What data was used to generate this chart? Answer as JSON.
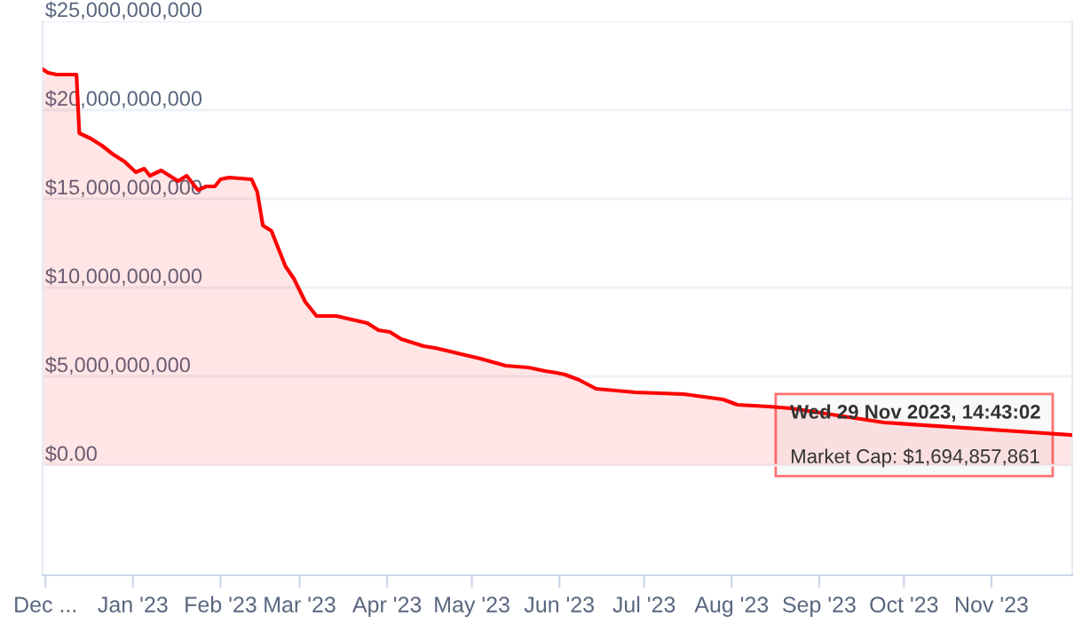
{
  "chart_data": {
    "type": "area",
    "x": [
      "2022-11-30",
      "2022-12-02",
      "2022-12-05",
      "2022-12-12",
      "2022-12-13",
      "2022-12-17",
      "2022-12-21",
      "2022-12-25",
      "2022-12-29",
      "2023-01-02",
      "2023-01-05",
      "2023-01-07",
      "2023-01-11",
      "2023-01-14",
      "2023-01-17",
      "2023-01-20",
      "2023-01-24",
      "2023-01-27",
      "2023-01-30",
      "2023-02-01",
      "2023-02-04",
      "2023-02-12",
      "2023-02-14",
      "2023-02-16",
      "2023-02-19",
      "2023-02-24",
      "2023-02-27",
      "2023-03-03",
      "2023-03-07",
      "2023-03-14",
      "2023-03-25",
      "2023-03-29",
      "2023-04-02",
      "2023-04-06",
      "2023-04-14",
      "2023-04-18",
      "2023-04-26",
      "2023-05-04",
      "2023-05-13",
      "2023-05-21",
      "2023-05-27",
      "2023-05-31",
      "2023-06-03",
      "2023-06-08",
      "2023-06-14",
      "2023-06-28",
      "2023-07-15",
      "2023-07-29",
      "2023-08-03",
      "2023-08-14",
      "2023-08-22",
      "2023-09-24",
      "2023-11-20",
      "2023-11-29T14:43"
    ],
    "series": [
      {
        "color": "#ff0000",
        "values": [
          22300000000,
          22100000000,
          22000000000,
          22000000000,
          18700000000,
          18400000000,
          18000000000,
          17500000000,
          17100000000,
          16500000000,
          16700000000,
          16300000000,
          16600000000,
          16300000000,
          16000000000,
          16300000000,
          15500000000,
          15700000000,
          15700000000,
          16100000000,
          16200000000,
          16100000000,
          15400000000,
          13500000000,
          13200000000,
          11200000000,
          10500000000,
          9200000000,
          8400000000,
          8400000000,
          8000000000,
          7600000000,
          7500000000,
          7100000000,
          6700000000,
          6600000000,
          6300000000,
          6000000000,
          5600000000,
          5500000000,
          5300000000,
          5200000000,
          5100000000,
          4800000000,
          4300000000,
          4100000000,
          4000000000,
          3700000000,
          3400000000,
          3300000000,
          3200000000,
          2400000000,
          1800000000,
          1694857861
        ]
      }
    ],
    "xlim": [
      "2022-11-30",
      "2023-11-29T14:43"
    ],
    "xticks": [
      {
        "value": "2022-12-01",
        "label": "Dec ..."
      },
      {
        "value": "2023-01-01",
        "label": "Jan '23"
      },
      {
        "value": "2023-02-01",
        "label": "Feb '23"
      },
      {
        "value": "2023-03-01",
        "label": "Mar '23"
      },
      {
        "value": "2023-04-01",
        "label": "Apr '23"
      },
      {
        "value": "2023-05-01",
        "label": "May '23"
      },
      {
        "value": "2023-06-01",
        "label": "Jun '23"
      },
      {
        "value": "2023-07-01",
        "label": "Jul '23"
      },
      {
        "value": "2023-08-01",
        "label": "Aug '23"
      },
      {
        "value": "2023-09-01",
        "label": "Sep '23"
      },
      {
        "value": "2023-10-01",
        "label": "Oct '23"
      },
      {
        "value": "2023-11-01",
        "label": "Nov '23"
      }
    ],
    "ylim": [
      -6200000000,
      25000000000
    ],
    "yticks": [
      {
        "value": 0,
        "label": "$0.00"
      },
      {
        "value": 5000000000,
        "label": "$5,000,000,000"
      },
      {
        "value": 10000000000,
        "label": "$10,000,000,000"
      },
      {
        "value": 15000000000,
        "label": "$15,000,000,000"
      },
      {
        "value": 20000000000,
        "label": "$20,000,000,000"
      },
      {
        "value": 25000000000,
        "label": "$25,000,000,000"
      }
    ],
    "grid": "y",
    "annotations": [
      "Wed 29 Nov 2023, 14:43:02",
      "Market Cap: $1,694,857,861"
    ]
  }
}
